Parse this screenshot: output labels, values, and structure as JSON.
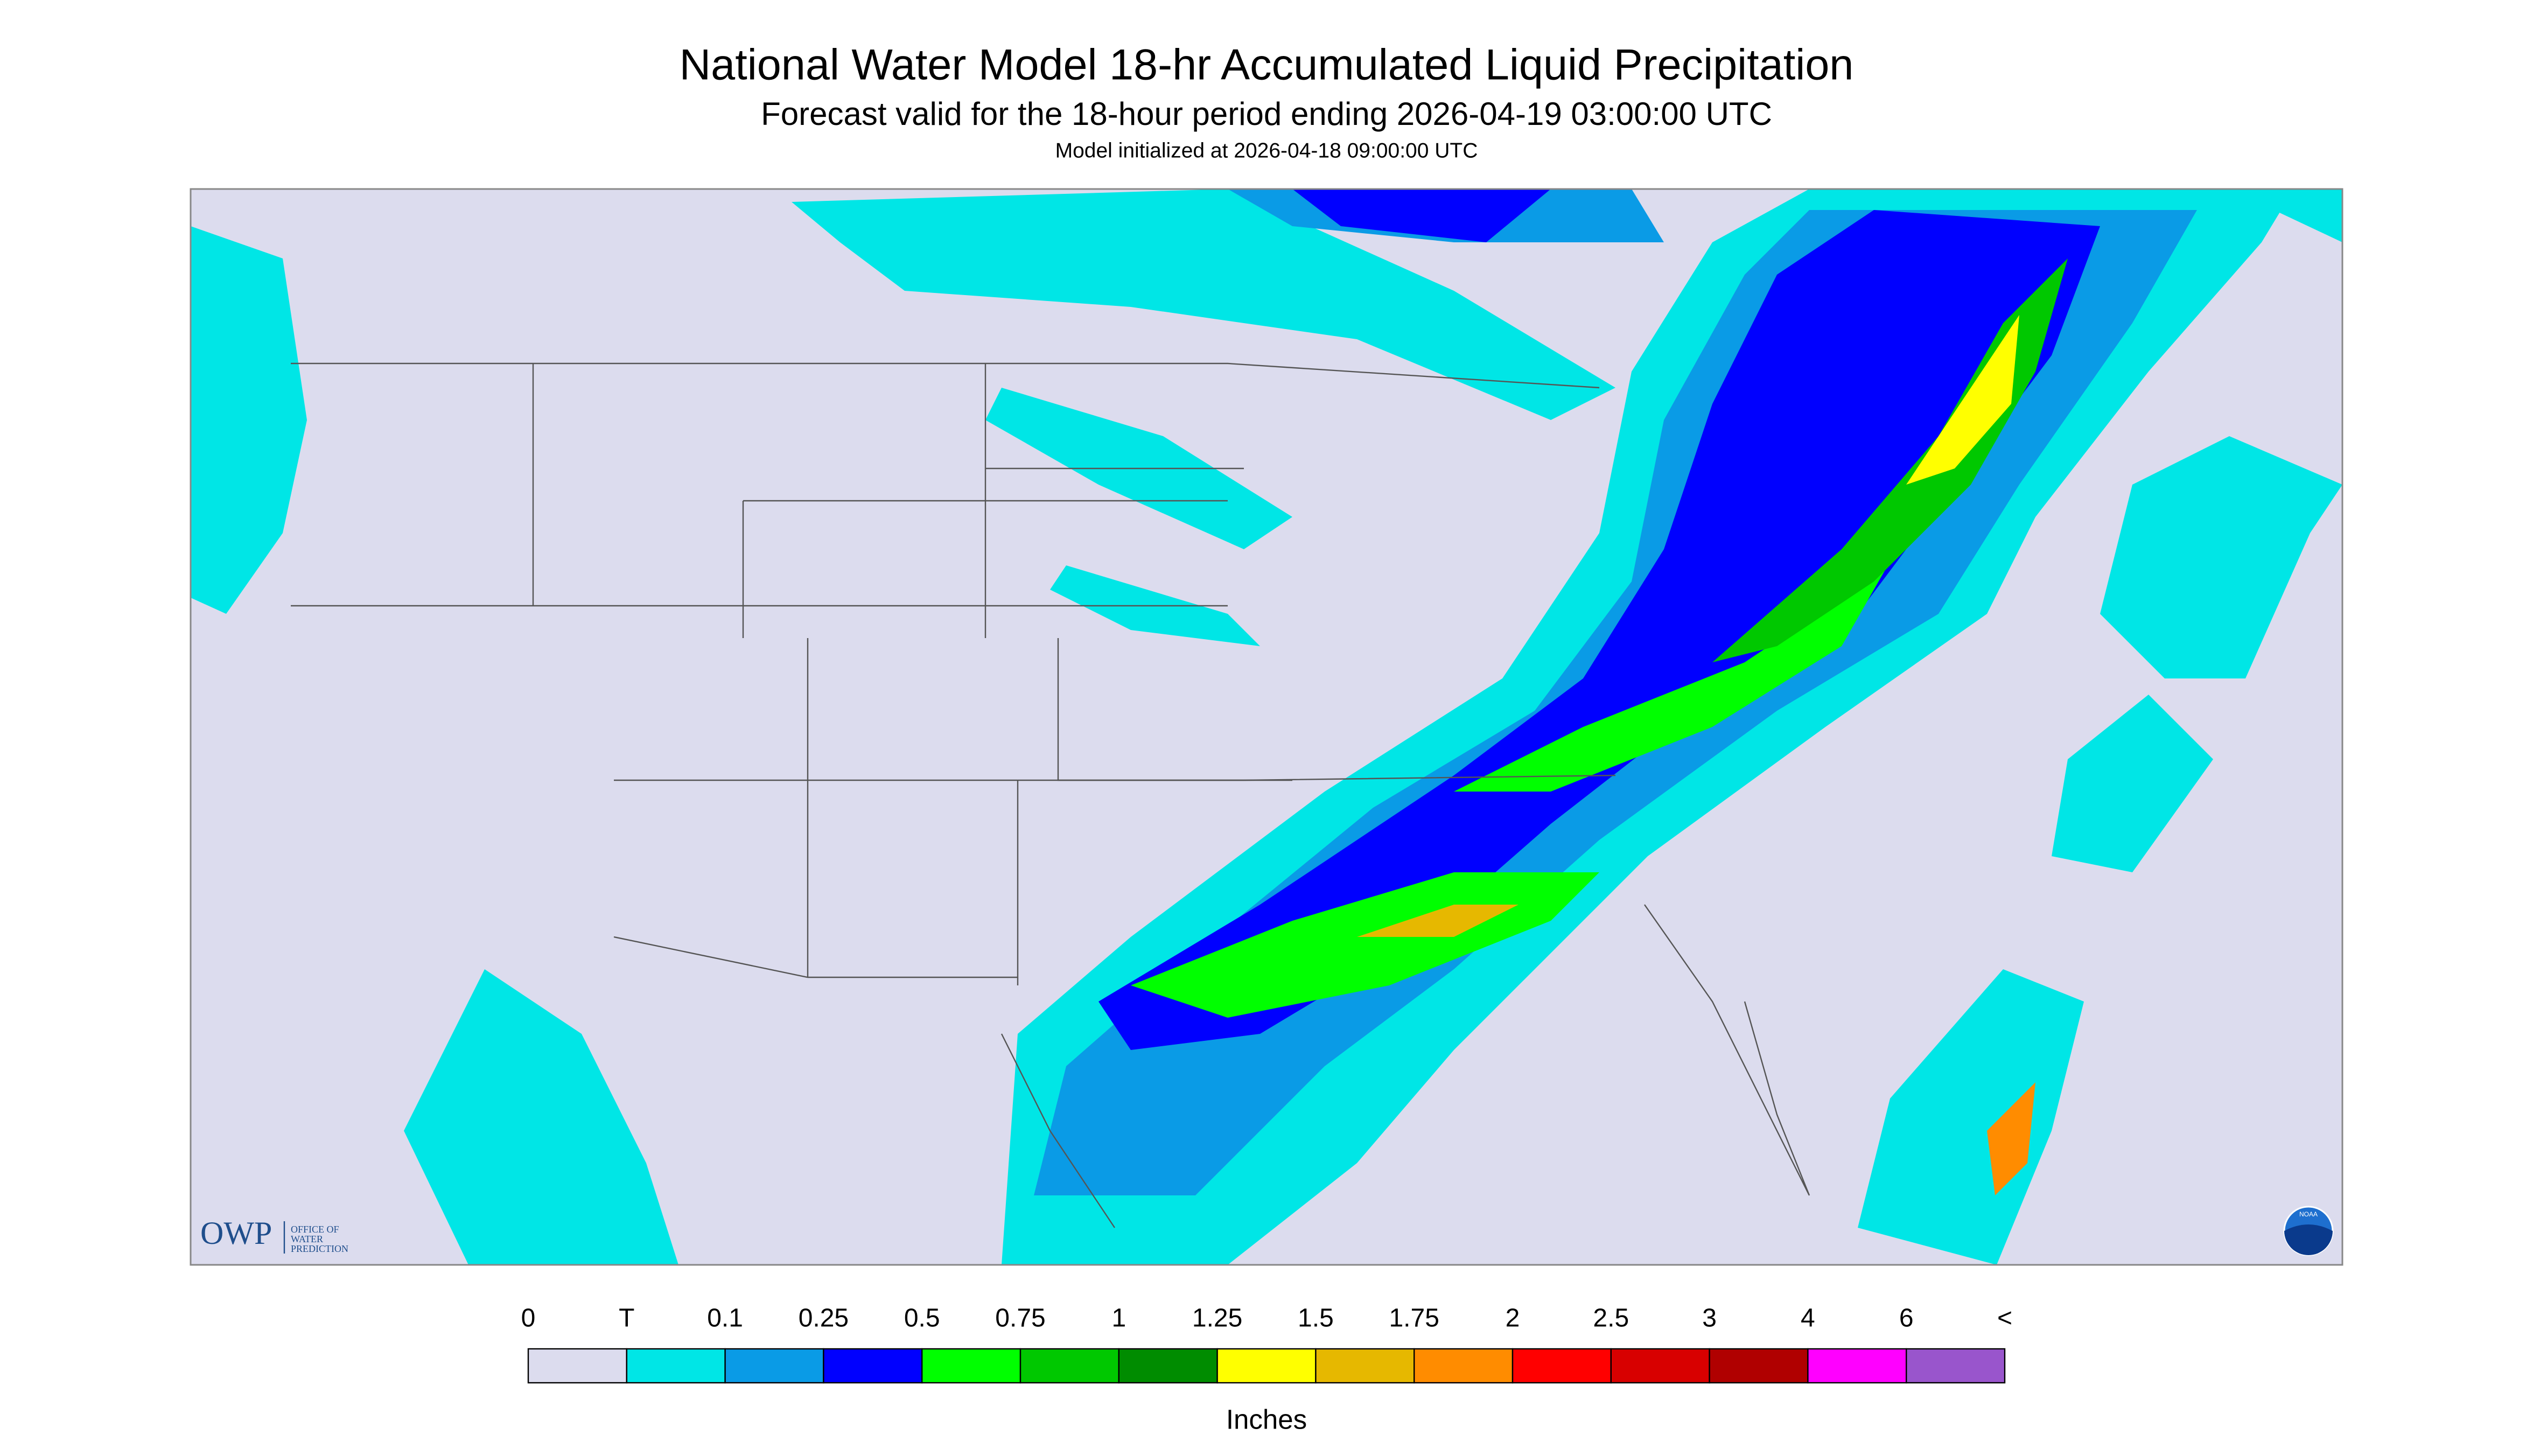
{
  "header": {
    "title": "National Water Model 18-hr Accumulated Liquid Precipitation",
    "subtitle": "Forecast valid for the 18-hour period ending 2026-04-19 03:00:00 UTC",
    "init": "Model initialized at 2026-04-18 09:00:00 UTC"
  },
  "legend": {
    "labels": [
      "0",
      "T",
      "0.1",
      "0.25",
      "0.5",
      "0.75",
      "1",
      "1.25",
      "1.5",
      "1.75",
      "2",
      "2.5",
      "3",
      "4",
      "6",
      "<"
    ],
    "colors": [
      "#dcdcee",
      "#00e6e6",
      "#0a9be6",
      "#0000ff",
      "#00ff00",
      "#00c800",
      "#008c00",
      "#ffff00",
      "#e6b800",
      "#ff8c00",
      "#ff0000",
      "#d80000",
      "#b00000",
      "#ff00ff",
      "#9955cc"
    ],
    "units": "Inches"
  },
  "logo": {
    "acronym": "OWP",
    "name": [
      "OFFICE OF",
      "WATER",
      "PREDICTION"
    ]
  },
  "badge": "NOAA"
}
